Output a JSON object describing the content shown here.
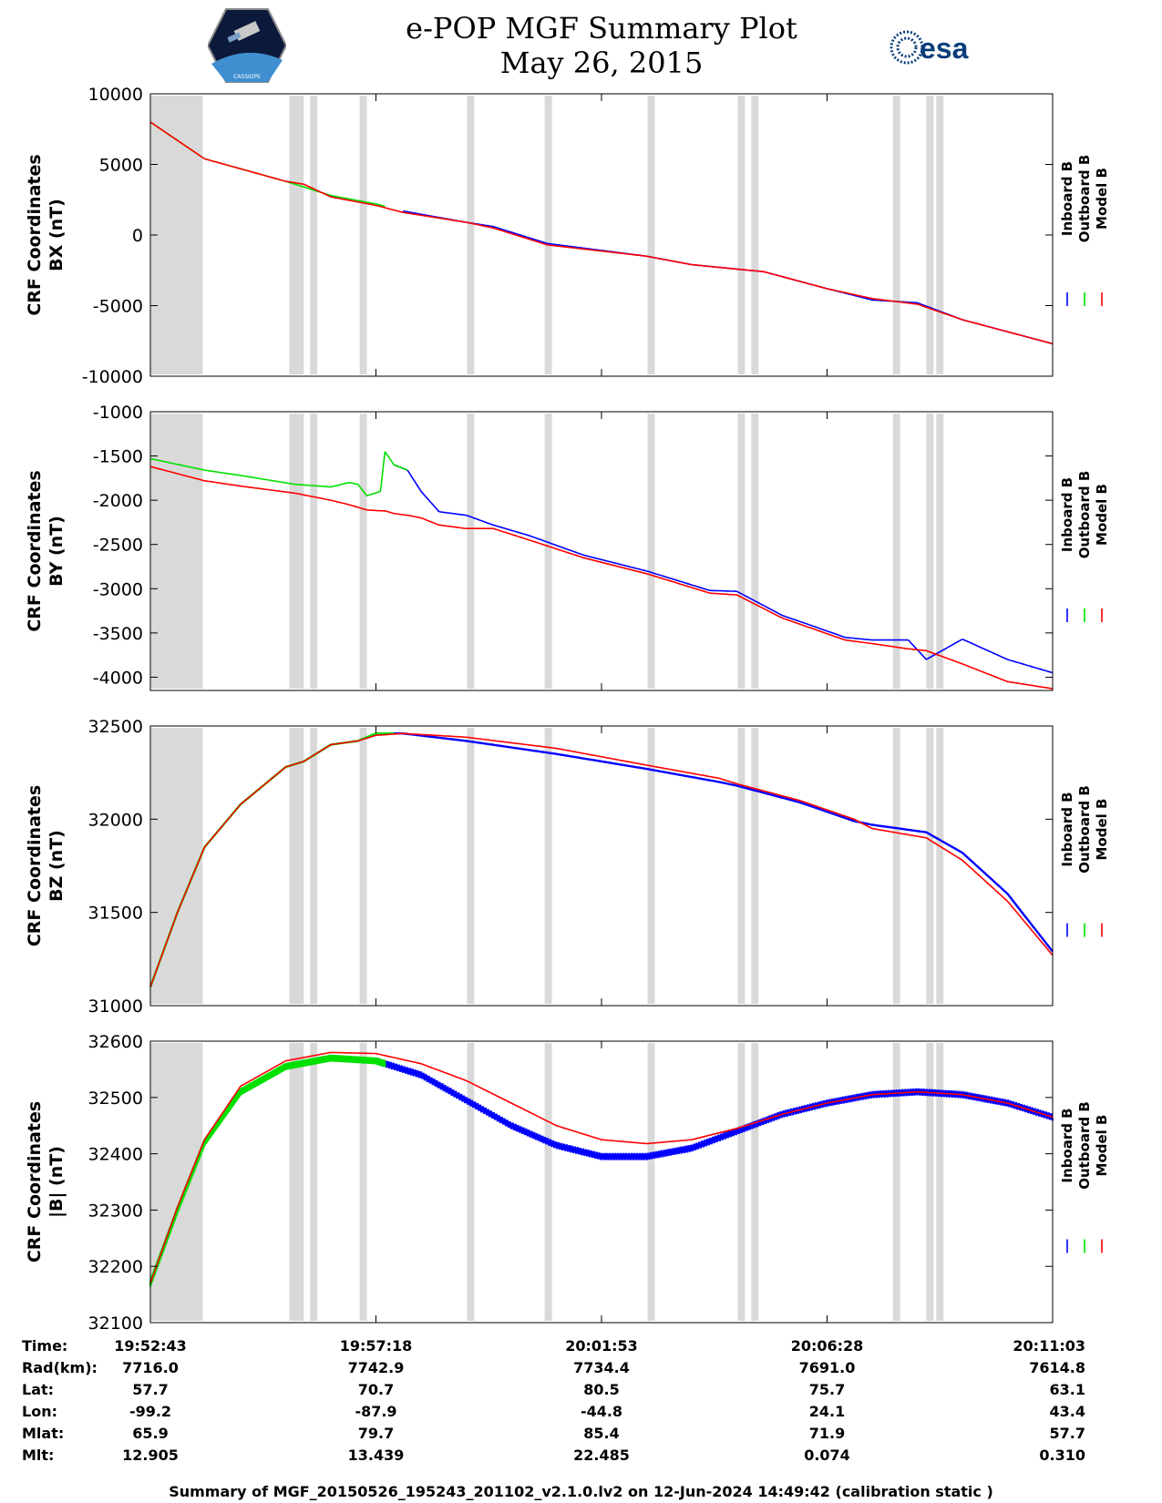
{
  "header": {
    "title": "e-POP MGF Summary Plot",
    "date": "May 26, 2015",
    "right_logo_text": "esa",
    "left_logo_text": "CASSIOPE"
  },
  "footer": {
    "text": "Summary of MGF_20150526_195243_201102_v2.1.0.lv2 on 12-Jun-2024 14:49:42 (calibration static )"
  },
  "colors": {
    "inboard": "#0000ff",
    "outboard": "#00e000",
    "model": "#ff0000",
    "gap": "#d9d9d9"
  },
  "chart_data": [
    {
      "type": "line",
      "ylabel": [
        "CRF Coordinates",
        "BX (nT)"
      ],
      "ylim": [
        -10000,
        10000
      ],
      "yticks": [
        -10000,
        -5000,
        0,
        5000,
        10000
      ],
      "legend": [
        "Inboard B",
        "Outboard B",
        "Model B"
      ],
      "x": [
        0,
        0.06,
        0.15,
        0.17,
        0.2,
        0.25,
        0.28,
        0.35,
        0.38,
        0.44,
        0.55,
        0.6,
        0.68,
        0.75,
        0.8,
        0.85,
        0.9,
        1
      ],
      "series": [
        {
          "name": "Inboard B",
          "start": 0.28,
          "values": [
            8000,
            5400,
            3800,
            3500,
            2700,
            2100,
            1700,
            900,
            600,
            -600,
            -1500,
            -2100,
            -2600,
            -3800,
            -4600,
            -4800,
            -6000,
            -7700
          ]
        },
        {
          "name": "Outboard B",
          "end": 0.26,
          "values": [
            8000,
            5400,
            3800,
            3400,
            2800,
            2200,
            1700,
            900,
            600,
            -600,
            -1500,
            -2100,
            -2600,
            -3800,
            -4600,
            -4800,
            -6000,
            -7700
          ]
        },
        {
          "name": "Model B",
          "values": [
            8000,
            5400,
            3800,
            3600,
            2700,
            2100,
            1600,
            900,
            500,
            -700,
            -1500,
            -2100,
            -2600,
            -3800,
            -4500,
            -4900,
            -6000,
            -7700
          ]
        }
      ]
    },
    {
      "type": "line",
      "ylabel": [
        "CRF Coordinates",
        "BY (nT)"
      ],
      "ylim": [
        -4150,
        -1000
      ],
      "yticks": [
        -4000,
        -3500,
        -3000,
        -2500,
        -2000,
        -1500,
        -1000
      ],
      "legend": [
        "Inboard B",
        "Outboard B",
        "Model B"
      ],
      "x": [
        0,
        0.06,
        0.1,
        0.16,
        0.2,
        0.22,
        0.23,
        0.24,
        0.255,
        0.26,
        0.27,
        0.285,
        0.3,
        0.32,
        0.35,
        0.38,
        0.42,
        0.48,
        0.55,
        0.62,
        0.65,
        0.7,
        0.77,
        0.8,
        0.84,
        0.86,
        0.9,
        0.95,
        1
      ],
      "series": [
        {
          "name": "Inboard B",
          "start": 0.27,
          "values": [
            -1530,
            -1660,
            -1720,
            -1820,
            -1850,
            -1800,
            -1820,
            -1950,
            -1900,
            -1450,
            -1600,
            -1660,
            -1900,
            -2130,
            -2170,
            -2280,
            -2400,
            -2620,
            -2800,
            -3020,
            -3030,
            -3300,
            -3550,
            -3580,
            -3580,
            -3800,
            -3570,
            -3800,
            -3950
          ]
        },
        {
          "name": "Outboard B",
          "end": 0.285,
          "values": [
            -1530,
            -1660,
            -1720,
            -1820,
            -1850,
            -1800,
            -1820,
            -1950,
            -1900,
            -1450,
            -1600,
            -1660,
            -1900,
            -2130,
            -2170,
            -2280,
            -2400,
            -2620,
            -2800,
            -3020,
            -3030,
            -3300,
            -3550,
            -3580,
            -3580,
            -3800,
            -3570,
            -3800,
            -3950
          ]
        },
        {
          "name": "Model B",
          "values": [
            -1620,
            -1780,
            -1840,
            -1920,
            -2000,
            -2050,
            -2080,
            -2110,
            -2120,
            -2120,
            -2150,
            -2170,
            -2200,
            -2280,
            -2320,
            -2320,
            -2450,
            -2650,
            -2830,
            -3050,
            -3070,
            -3330,
            -3580,
            -3620,
            -3680,
            -3700,
            -3850,
            -4050,
            -4130
          ]
        }
      ]
    },
    {
      "type": "line",
      "ylabel": [
        "CRF Coordinates",
        "BZ (nT)"
      ],
      "ylim": [
        31000,
        32500
      ],
      "yticks": [
        31000,
        31500,
        32000,
        32500
      ],
      "legend": [
        "Inboard B",
        "Outboard B",
        "Model B"
      ],
      "x": [
        0,
        0.03,
        0.06,
        0.1,
        0.15,
        0.17,
        0.2,
        0.23,
        0.25,
        0.28,
        0.35,
        0.45,
        0.55,
        0.63,
        0.65,
        0.72,
        0.78,
        0.8,
        0.86,
        0.9,
        0.95,
        1
      ],
      "series": [
        {
          "name": "Inboard B",
          "start": 0.25,
          "values": [
            31100,
            31500,
            31850,
            32080,
            32280,
            32310,
            32400,
            32420,
            32460,
            32460,
            32420,
            32350,
            32270,
            32200,
            32180,
            32090,
            31990,
            31970,
            31930,
            31820,
            31600,
            31290
          ]
        },
        {
          "name": "Outboard B",
          "end": 0.27,
          "values": [
            31100,
            31500,
            31850,
            32080,
            32280,
            32310,
            32400,
            32420,
            32460,
            32460,
            32420,
            32350,
            32270,
            32200,
            32180,
            32090,
            31990,
            31970,
            31930,
            31820,
            31600,
            31290
          ]
        },
        {
          "name": "Model B",
          "values": [
            31100,
            31500,
            31850,
            32080,
            32280,
            32310,
            32400,
            32420,
            32450,
            32460,
            32440,
            32380,
            32290,
            32220,
            32190,
            32100,
            32000,
            31950,
            31900,
            31780,
            31560,
            31270
          ]
        }
      ]
    },
    {
      "type": "line",
      "ylabel": [
        "CRF Coordinates",
        "|B| (nT)"
      ],
      "ylim": [
        32100,
        32600
      ],
      "yticks": [
        32100,
        32200,
        32300,
        32400,
        32500,
        32600
      ],
      "legend": [
        "Inboard B",
        "Outboard B",
        "Model B"
      ],
      "x": [
        0,
        0.03,
        0.06,
        0.1,
        0.15,
        0.2,
        0.25,
        0.3,
        0.35,
        0.4,
        0.45,
        0.5,
        0.55,
        0.6,
        0.65,
        0.7,
        0.75,
        0.8,
        0.85,
        0.9,
        0.95,
        1
      ],
      "series": [
        {
          "name": "Inboard B",
          "start": 0.25,
          "values": [
            32170,
            32300,
            32420,
            32510,
            32555,
            32570,
            32565,
            32540,
            32495,
            32450,
            32415,
            32395,
            32395,
            32410,
            32440,
            32470,
            32490,
            32505,
            32510,
            32505,
            32490,
            32465
          ]
        },
        {
          "name": "Outboard B",
          "end": 0.26,
          "values": [
            32170,
            32300,
            32420,
            32510,
            32555,
            32570,
            32565,
            32540,
            32495,
            32450,
            32415,
            32395,
            32395,
            32410,
            32440,
            32470,
            32490,
            32505,
            32510,
            32505,
            32490,
            32465
          ]
        },
        {
          "name": "Model B",
          "values": [
            32170,
            32305,
            32425,
            32520,
            32565,
            32580,
            32578,
            32560,
            32530,
            32490,
            32450,
            32425,
            32418,
            32425,
            32445,
            32470,
            32490,
            32505,
            32510,
            32505,
            32490,
            32465
          ]
        }
      ]
    }
  ],
  "gaps": [
    [
      0,
      0.058
    ],
    [
      0.154,
      0.17
    ],
    [
      0.177,
      0.185
    ],
    [
      0.232,
      0.24
    ],
    [
      0.351,
      0.359
    ],
    [
      0.437,
      0.445
    ],
    [
      0.551,
      0.559
    ],
    [
      0.651,
      0.659
    ],
    [
      0.666,
      0.674
    ],
    [
      0.823,
      0.831
    ],
    [
      0.86,
      0.868
    ],
    [
      0.871,
      0.879
    ]
  ],
  "ephemeris": {
    "row_labels": [
      "Time:",
      "Rad(km):",
      "Lat:",
      "Lon:",
      "Mlat:",
      "Mlt:"
    ],
    "columns": [
      [
        "19:52:43",
        "7716.0",
        "57.7",
        "-99.2",
        "65.9",
        "12.905"
      ],
      [
        "19:57:18",
        "7742.9",
        "70.7",
        "-87.9",
        "79.7",
        "13.439"
      ],
      [
        "20:01:53",
        "7734.4",
        "80.5",
        "-44.8",
        "85.4",
        "22.485"
      ],
      [
        "20:06:28",
        "7691.0",
        "75.7",
        "24.1",
        "71.9",
        "0.074"
      ],
      [
        "20:11:03",
        "7614.8",
        "63.1",
        "43.4",
        "57.7",
        "0.310"
      ]
    ]
  }
}
